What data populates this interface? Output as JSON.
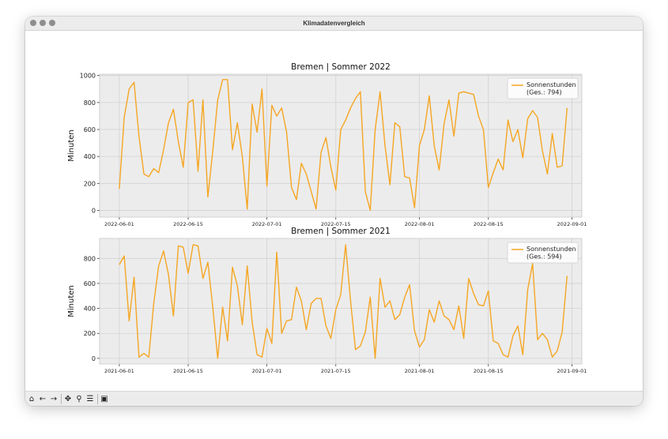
{
  "window": {
    "title": "Klimadatenvergleich"
  },
  "toolbar": {
    "home": "⌂",
    "back": "←",
    "forward": "→",
    "pan": "✥",
    "zoom": "⚲",
    "configure": "☰",
    "save": "▣",
    "icons": [
      "home-icon",
      "back-arrow-icon",
      "forward-arrow-icon",
      "pan-icon",
      "zoom-icon",
      "configure-subplots-icon",
      "save-icon"
    ]
  },
  "colors": {
    "line": "#f5a623",
    "axes_bg": "#ececec",
    "grid": "#ffffff"
  },
  "chart_data": [
    {
      "type": "line",
      "title": "Bremen | Sommer 2022",
      "xlabel": "",
      "ylabel": "Minuten",
      "grid": true,
      "legend": "top-right",
      "start_date": "2022-06-01",
      "xlim": [
        "2022-05-28",
        "2022-09-03"
      ],
      "ylim": [
        -50,
        1010
      ],
      "xticks": [
        "2022-06-01",
        "2022-06-15",
        "2022-07-01",
        "2022-07-15",
        "2022-08-01",
        "2022-08-15",
        "2022-09-01"
      ],
      "yticks": [
        0,
        200,
        400,
        600,
        800,
        1000
      ],
      "series": [
        {
          "name": "Sonnenstunden\n(Ges.: 794)",
          "values": [
            160,
            690,
            900,
            950,
            550,
            270,
            250,
            310,
            280,
            450,
            650,
            750,
            510,
            320,
            800,
            820,
            290,
            820,
            100,
            440,
            820,
            970,
            970,
            450,
            650,
            400,
            10,
            790,
            580,
            900,
            180,
            780,
            700,
            760,
            580,
            170,
            80,
            350,
            270,
            140,
            10,
            430,
            540,
            320,
            150,
            600,
            670,
            760,
            830,
            880,
            140,
            0,
            600,
            880,
            480,
            190,
            650,
            620,
            250,
            240,
            20,
            480,
            600,
            850,
            480,
            300,
            640,
            820,
            550,
            870,
            880,
            870,
            860,
            700,
            600,
            170,
            280,
            380,
            300,
            670,
            510,
            600,
            390,
            680,
            740,
            690,
            440,
            270,
            570,
            320,
            330,
            760
          ]
        }
      ]
    },
    {
      "type": "line",
      "title": "Bremen | Sommer 2021",
      "xlabel": "",
      "ylabel": "Minuten",
      "grid": true,
      "legend": "top-right",
      "start_date": "2021-06-01",
      "xlim": [
        "2021-05-28",
        "2021-09-03"
      ],
      "ylim": [
        -45,
        960
      ],
      "xticks": [
        "2021-06-01",
        "2021-06-15",
        "2021-07-01",
        "2021-07-15",
        "2021-08-01",
        "2021-08-15",
        "2021-09-01"
      ],
      "yticks": [
        0,
        200,
        400,
        600,
        800
      ],
      "series": [
        {
          "name": "Sonnenstunden\n(Ges.: 594)",
          "values": [
            750,
            820,
            300,
            650,
            10,
            40,
            10,
            440,
            740,
            860,
            670,
            340,
            900,
            890,
            680,
            910,
            900,
            640,
            770,
            410,
            0,
            410,
            140,
            730,
            580,
            270,
            740,
            290,
            30,
            10,
            240,
            120,
            850,
            200,
            300,
            310,
            570,
            460,
            230,
            440,
            480,
            480,
            260,
            160,
            390,
            510,
            910,
            460,
            70,
            100,
            210,
            490,
            0,
            640,
            410,
            460,
            310,
            350,
            490,
            590,
            220,
            90,
            150,
            390,
            290,
            460,
            340,
            310,
            230,
            420,
            160,
            640,
            520,
            430,
            420,
            540,
            140,
            120,
            30,
            10,
            180,
            260,
            30,
            550,
            760,
            150,
            200,
            150,
            10,
            60,
            210,
            660
          ]
        }
      ]
    }
  ]
}
